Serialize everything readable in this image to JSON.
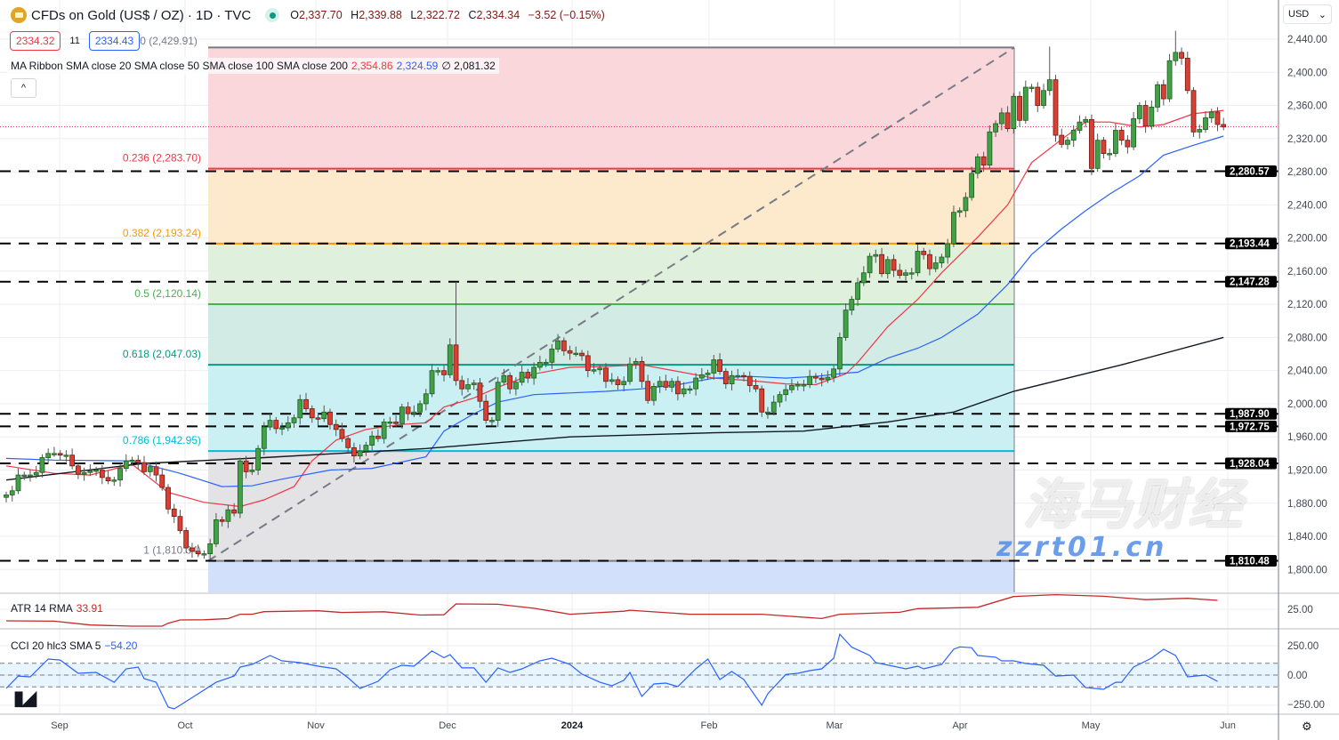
{
  "header": {
    "title": "CFDs on Gold (US$ / OZ) · 1D · TVC",
    "open": "2,337.70",
    "high": "2,339.88",
    "low": "2,322.72",
    "close": "2,334.34",
    "change": "−3.52 (−0.15%)",
    "o_label": "O",
    "h_label": "H",
    "l_label": "L",
    "c_label": "C"
  },
  "trade": {
    "sell": "2334.32",
    "spread": "11",
    "buy": "2334.43",
    "fib0_label": "0 (2,429.91)"
  },
  "ma_legend": {
    "label": "MA Ribbon SMA close 20 SMA close 50 SMA close 100 SMA close 200",
    "v1": "2,354.86",
    "v2": "2,324.59",
    "v3": "∅ 2,081.32"
  },
  "collapse_icon": "chevron-up",
  "currency": "USD",
  "atr": {
    "label": "ATR 14 RMA",
    "value": "33.91"
  },
  "cci": {
    "label": "CCI 20 hlc3 SMA 5",
    "value": "−54.20"
  },
  "watermark": {
    "cn": "海马财经",
    "site": "zzrt01.cn"
  },
  "tv_logo": "TV",
  "chart_data": {
    "type": "candlestick",
    "title": "CFDs on Gold (US$ / OZ) · 1D · TVC",
    "ylim": [
      1790,
      2460
    ],
    "y_ticks": [
      "2,440.00",
      "2,400.00",
      "2,360.00",
      "2,320.00",
      "2,280.00",
      "2,240.00",
      "2,200.00",
      "2,160.00",
      "2,120.00",
      "2,080.00",
      "2,040.00",
      "2,000.00",
      "1,960.00",
      "1,920.00",
      "1,880.00",
      "1,840.00",
      "1,800.00"
    ],
    "x_ticks": [
      "Sep",
      "Oct",
      "Nov",
      "Dec",
      "2024",
      "Feb",
      "Mar",
      "Apr",
      "May",
      "Jun"
    ],
    "last_price": 2334.34,
    "closes": [
      1890,
      1895,
      1914,
      1914,
      1914,
      1917,
      1935,
      1940,
      1940,
      1938,
      1938,
      1925,
      1915,
      1917,
      1919,
      1920,
      1911,
      1907,
      1908,
      1922,
      1931,
      1932,
      1929,
      1918,
      1924,
      1914,
      1899,
      1873,
      1864,
      1847,
      1826,
      1822,
      1819,
      1819,
      1831,
      1860,
      1858,
      1872,
      1868,
      1931,
      1918,
      1920,
      1946,
      1972,
      1980,
      1970,
      1971,
      1977,
      1983,
      2005,
      1994,
      1983,
      1982,
      1990,
      1975,
      1969,
      1958,
      1947,
      1937,
      1943,
      1950,
      1961,
      1958,
      1978,
      1978,
      1976,
      1996,
      1988,
      1990,
      2000,
      2012,
      2040,
      2040,
      2035,
      2071,
      2028,
      2018,
      2023,
      2025,
      2003,
      1980,
      1980,
      2026,
      2034,
      2018,
      2026,
      2038,
      2031,
      2044,
      2050,
      2050,
      2066,
      2076,
      2064,
      2061,
      2061,
      2058,
      2040,
      2041,
      2043,
      2027,
      2029,
      2023,
      2027,
      2048,
      2051,
      2027,
      2004,
      2021,
      2027,
      2020,
      2027,
      2012,
      2018,
      2018,
      2031,
      2035,
      2037,
      2053,
      2039,
      2024,
      2034,
      2034,
      2033,
      2022,
      2018,
      1990,
      1990,
      2002,
      2011,
      2017,
      2022,
      2023,
      2023,
      2033,
      2031,
      2029,
      2032,
      2042,
      2080,
      2113,
      2126,
      2146,
      2158,
      2178,
      2180,
      2157,
      2174,
      2161,
      2155,
      2158,
      2158,
      2184,
      2180,
      2163,
      2170,
      2177,
      2193,
      2231,
      2233,
      2249,
      2278,
      2298,
      2288,
      2328,
      2338,
      2351,
      2332,
      2371,
      2342,
      2382,
      2382,
      2360,
      2378,
      2391,
      2324,
      2313,
      2318,
      2330,
      2340,
      2343,
      2284,
      2318,
      2302,
      2302,
      2330,
      2318,
      2310,
      2344,
      2360,
      2335,
      2358,
      2385,
      2368,
      2414,
      2424,
      2417,
      2378,
      2328,
      2331,
      2345,
      2352,
      2337,
      2334
    ],
    "notable_highs": [
      {
        "bar": 75,
        "high": 2147
      },
      {
        "bar": 174,
        "high": 2431
      },
      {
        "bar": 195,
        "high": 2450
      }
    ],
    "series": [
      {
        "name": "SMA close 20",
        "color": "#f23645",
        "points": [
          [
            0,
            1925
          ],
          [
            8,
            1916
          ],
          [
            14,
            1914
          ],
          [
            21,
            1927
          ],
          [
            27,
            1893
          ],
          [
            33,
            1881
          ],
          [
            39,
            1876
          ],
          [
            43,
            1884
          ],
          [
            48,
            1900
          ],
          [
            51,
            1931
          ],
          [
            55,
            1956
          ],
          [
            60,
            1969
          ],
          [
            66,
            1975
          ],
          [
            70,
            1977
          ],
          [
            73,
            1996
          ],
          [
            78,
            2007
          ],
          [
            82,
            2020
          ],
          [
            88,
            2036
          ],
          [
            94,
            2044
          ],
          [
            100,
            2045
          ],
          [
            106,
            2047
          ],
          [
            112,
            2039
          ],
          [
            118,
            2031
          ],
          [
            124,
            2028
          ],
          [
            130,
            2024
          ],
          [
            135,
            2023
          ],
          [
            140,
            2036
          ],
          [
            142,
            2050
          ],
          [
            147,
            2093
          ],
          [
            152,
            2126
          ],
          [
            156,
            2158
          ],
          [
            162,
            2201
          ],
          [
            167,
            2240
          ],
          [
            171,
            2291
          ],
          [
            176,
            2319
          ],
          [
            180,
            2340
          ],
          [
            184,
            2340
          ],
          [
            189,
            2334
          ],
          [
            193,
            2337
          ],
          [
            198,
            2350
          ],
          [
            203,
            2354
          ]
        ]
      },
      {
        "name": "SMA close 50",
        "color": "#2962ff",
        "points": [
          [
            0,
            1934
          ],
          [
            8,
            1932
          ],
          [
            21,
            1931
          ],
          [
            29,
            1916
          ],
          [
            36,
            1900
          ],
          [
            41,
            1901
          ],
          [
            46,
            1909
          ],
          [
            54,
            1920
          ],
          [
            61,
            1922
          ],
          [
            70,
            1936
          ],
          [
            73,
            1967
          ],
          [
            78,
            1988
          ],
          [
            82,
            2002
          ],
          [
            88,
            2011
          ],
          [
            94,
            2013
          ],
          [
            100,
            2015
          ],
          [
            106,
            2018
          ],
          [
            112,
            2023
          ],
          [
            118,
            2031
          ],
          [
            124,
            2033
          ],
          [
            130,
            2031
          ],
          [
            135,
            2033
          ],
          [
            140,
            2037
          ],
          [
            142,
            2038
          ],
          [
            147,
            2055
          ],
          [
            152,
            2067
          ],
          [
            156,
            2080
          ],
          [
            162,
            2108
          ],
          [
            167,
            2144
          ],
          [
            171,
            2180
          ],
          [
            176,
            2211
          ],
          [
            180,
            2233
          ],
          [
            184,
            2253
          ],
          [
            189,
            2275
          ],
          [
            193,
            2300
          ],
          [
            198,
            2312
          ],
          [
            203,
            2323
          ]
        ]
      },
      {
        "name": "SMA close 200",
        "color": "#131722",
        "points": [
          [
            0,
            1908
          ],
          [
            23,
            1928
          ],
          [
            43,
            1935
          ],
          [
            70,
            1946
          ],
          [
            94,
            1960
          ],
          [
            118,
            1965
          ],
          [
            133,
            1967
          ],
          [
            147,
            1978
          ],
          [
            158,
            1990
          ],
          [
            168,
            2015
          ],
          [
            177,
            2031
          ],
          [
            186,
            2047
          ],
          [
            203,
            2080
          ]
        ]
      }
    ],
    "fibonacci": {
      "levels": [
        {
          "ratio": "0",
          "price": 2429.91,
          "label": "0 (2,429.91)",
          "line": "#787b86",
          "fill": "#f9d7db"
        },
        {
          "ratio": "0.236",
          "price": 2283.7,
          "label": "0.236 (2,283.70)",
          "line": "#f23645",
          "fill": "#fde9cc"
        },
        {
          "ratio": "0.382",
          "price": 2193.24,
          "label": "0.382 (2,193.24)",
          "line": "#ff9800",
          "fill": "#dff0dc"
        },
        {
          "ratio": "0.5",
          "price": 2120.14,
          "label": "0.5 (2,120.14)",
          "line": "#4caf50",
          "fill": "#d2ebe4"
        },
        {
          "ratio": "0.618",
          "price": 2047.03,
          "label": "0.618 (2,047.03)",
          "line": "#089981",
          "fill": "#caf0f4"
        },
        {
          "ratio": "0.786",
          "price": 1942.95,
          "label": "0.786 (1,942.95)",
          "line": "#00bcd4",
          "fill": "#e3e3e6"
        },
        {
          "ratio": "1",
          "price": 1810.34,
          "label": "1 (1,810.34)",
          "line": "#787b86",
          "fill": "#d3e0fb"
        }
      ],
      "start_bar": 33,
      "end_bar": 168
    },
    "horizontal_lines": [
      {
        "price": 2280.57,
        "label": "2,280.57"
      },
      {
        "price": 2193.44,
        "label": "2,193.44"
      },
      {
        "price": 2147.28,
        "label": "2,147.28"
      },
      {
        "price": 1987.9,
        "label": "1,987.90"
      },
      {
        "price": 1972.75,
        "label": "1,972.75"
      },
      {
        "price": 1928.04,
        "label": "1,928.04"
      },
      {
        "price": 1810.48,
        "label": "1,810.48"
      }
    ],
    "atr_pane": {
      "y_tick": "25.00",
      "points": [
        [
          0,
          13.4
        ],
        [
          8,
          13
        ],
        [
          14,
          9.2
        ],
        [
          21,
          8
        ],
        [
          26,
          8
        ],
        [
          27,
          11
        ],
        [
          29,
          14.3
        ],
        [
          33,
          14.5
        ],
        [
          37,
          15.6
        ],
        [
          39,
          20
        ],
        [
          41,
          20
        ],
        [
          43,
          22.6
        ],
        [
          52,
          23.5
        ],
        [
          56,
          21.8
        ],
        [
          63,
          22.5
        ],
        [
          69,
          19.2
        ],
        [
          73,
          19.5
        ],
        [
          75,
          30.4
        ],
        [
          82,
          30
        ],
        [
          88,
          26
        ],
        [
          94,
          20
        ],
        [
          103,
          23
        ],
        [
          104,
          24
        ],
        [
          114,
          20
        ],
        [
          126,
          20
        ],
        [
          136,
          15.7
        ],
        [
          139,
          20
        ],
        [
          149,
          22
        ],
        [
          152,
          25.6
        ],
        [
          162,
          27
        ],
        [
          168,
          37.8
        ],
        [
          175,
          39.6
        ],
        [
          183,
          38
        ],
        [
          190,
          34.6
        ],
        [
          197,
          36
        ],
        [
          202,
          33.9
        ]
      ]
    },
    "cci_pane": {
      "y_ticks": [
        "250.00",
        "0.00",
        "−250.00"
      ],
      "band": [
        -100,
        100
      ],
      "points": [
        [
          0,
          -114
        ],
        [
          2,
          -8
        ],
        [
          4,
          -15
        ],
        [
          7,
          136
        ],
        [
          9,
          128
        ],
        [
          12,
          15
        ],
        [
          15,
          23
        ],
        [
          18,
          -61
        ],
        [
          20,
          53
        ],
        [
          22,
          68
        ],
        [
          23,
          -30
        ],
        [
          25,
          -61
        ],
        [
          27,
          -273
        ],
        [
          28,
          -288
        ],
        [
          29,
          -257
        ],
        [
          32,
          -159
        ],
        [
          35,
          -61
        ],
        [
          38,
          -8
        ],
        [
          39,
          68
        ],
        [
          41,
          91
        ],
        [
          44,
          167
        ],
        [
          46,
          121
        ],
        [
          49,
          106
        ],
        [
          52,
          76
        ],
        [
          55,
          53
        ],
        [
          57,
          -23
        ],
        [
          59,
          -114
        ],
        [
          62,
          -53
        ],
        [
          64,
          45
        ],
        [
          66,
          83
        ],
        [
          68,
          76
        ],
        [
          71,
          205
        ],
        [
          73,
          148
        ],
        [
          74,
          174
        ],
        [
          76,
          61
        ],
        [
          78,
          61
        ],
        [
          80,
          -61
        ],
        [
          82,
          61
        ],
        [
          84,
          23
        ],
        [
          86,
          53
        ],
        [
          89,
          121
        ],
        [
          91,
          144
        ],
        [
          94,
          91
        ],
        [
          96,
          8
        ],
        [
          99,
          -61
        ],
        [
          101,
          -91
        ],
        [
          103,
          -45
        ],
        [
          104,
          23
        ],
        [
          106,
          -182
        ],
        [
          108,
          -76
        ],
        [
          110,
          -68
        ],
        [
          112,
          -98
        ],
        [
          115,
          53
        ],
        [
          117,
          136
        ],
        [
          119,
          -38
        ],
        [
          121,
          30
        ],
        [
          123,
          -38
        ],
        [
          126,
          -257
        ],
        [
          127,
          -159
        ],
        [
          130,
          5
        ],
        [
          132,
          15
        ],
        [
          134,
          38
        ],
        [
          136,
          53
        ],
        [
          138,
          144
        ],
        [
          139,
          348
        ],
        [
          141,
          238
        ],
        [
          144,
          167
        ],
        [
          145,
          106
        ],
        [
          150,
          53
        ],
        [
          152,
          76
        ],
        [
          153,
          53
        ],
        [
          156,
          91
        ],
        [
          158,
          220
        ],
        [
          159,
          240
        ],
        [
          161,
          233
        ],
        [
          162,
          167
        ],
        [
          165,
          152
        ],
        [
          166,
          121
        ],
        [
          168,
          121
        ],
        [
          170,
          99
        ],
        [
          173,
          83
        ],
        [
          175,
          -8
        ],
        [
          178,
          0
        ],
        [
          180,
          -106
        ],
        [
          183,
          -121
        ],
        [
          185,
          -61
        ],
        [
          186,
          -61
        ],
        [
          188,
          68
        ],
        [
          191,
          144
        ],
        [
          193,
          220
        ],
        [
          195,
          167
        ],
        [
          197,
          -15
        ],
        [
          200,
          0
        ],
        [
          202,
          -54
        ]
      ]
    },
    "colors": {
      "up": "#43a047",
      "down": "#d84034",
      "grid": "#eceef2"
    }
  }
}
